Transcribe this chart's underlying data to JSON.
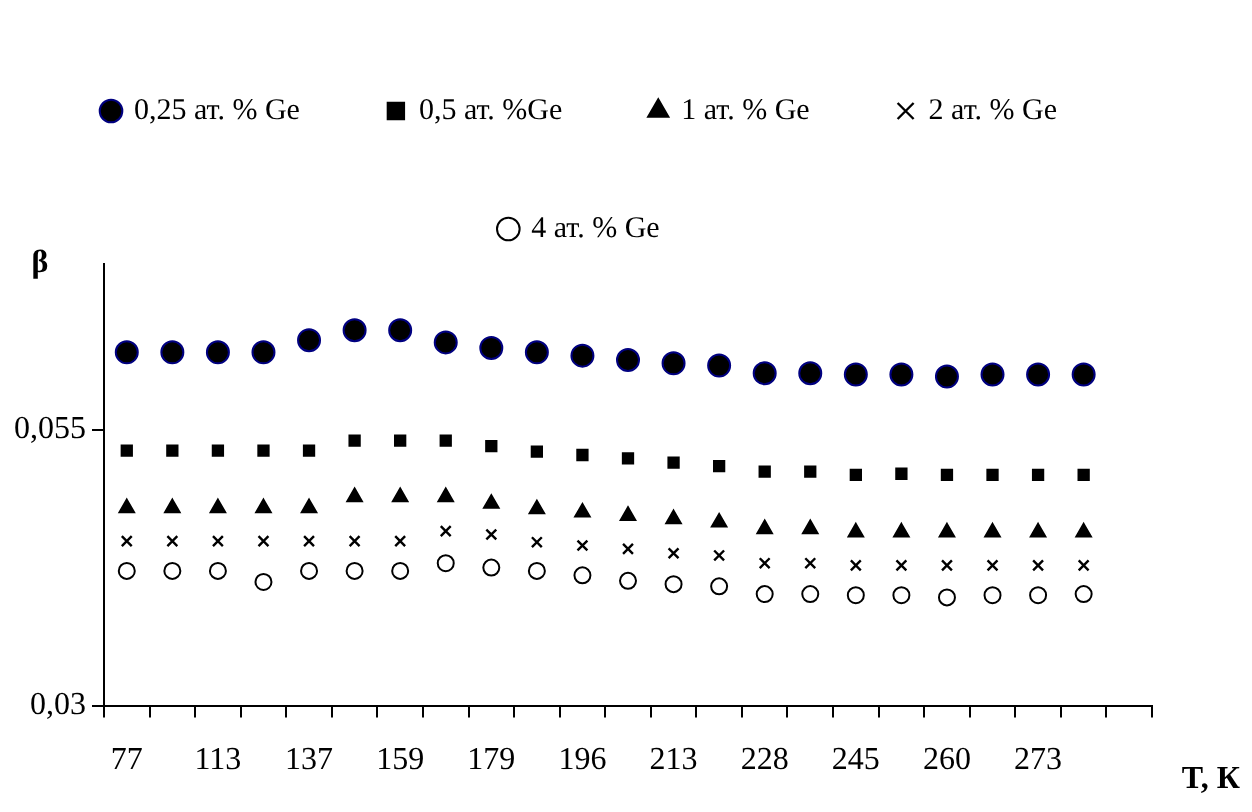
{
  "chart_data": {
    "type": "scatter",
    "xlabel": "T, К",
    "ylabel": "β",
    "categories": [
      "77",
      null,
      "113",
      null,
      "137",
      null,
      "159",
      null,
      "179",
      null,
      "196",
      null,
      "213",
      null,
      "228",
      null,
      "245",
      null,
      "260",
      null,
      "273",
      null,
      null
    ],
    "ylim": [
      0.03,
      0.07
    ],
    "yticks": [
      {
        "value": 0.03,
        "label": "0,03"
      },
      {
        "value": 0.055,
        "label": "0,055"
      }
    ],
    "grid": false,
    "legend": "top",
    "series": [
      {
        "name": "0,25 ат. % Ge",
        "color": "#000000",
        "marker": "circle",
        "values": [
          0.062,
          0.062,
          0.062,
          0.062,
          0.0631,
          0.064,
          0.064,
          0.0629,
          0.0624,
          0.062,
          0.0617,
          0.0613,
          0.061,
          0.0608,
          0.0601,
          0.0601,
          0.06,
          0.06,
          0.0598,
          0.06,
          0.06,
          0.06,
          null
        ]
      },
      {
        "name": "0,5 ат. %Ge",
        "color": "#000000",
        "marker": "square",
        "values": [
          0.0531,
          0.0531,
          0.0531,
          0.0531,
          0.0531,
          0.054,
          0.054,
          0.054,
          0.0535,
          0.053,
          0.0527,
          0.0524,
          0.052,
          0.0517,
          0.0512,
          0.0512,
          0.0509,
          0.051,
          0.0509,
          0.0509,
          0.0509,
          0.0509,
          null
        ]
      },
      {
        "name": "1 ат. % Ge",
        "color": "#000000",
        "marker": "triangle",
        "values": [
          0.0479,
          0.0479,
          0.0479,
          0.0479,
          0.0479,
          0.0489,
          0.0489,
          0.0489,
          0.0483,
          0.0478,
          0.0475,
          0.0472,
          0.0469,
          0.0466,
          0.046,
          0.046,
          0.0457,
          0.0457,
          0.0457,
          0.0457,
          0.0457,
          0.0457,
          null
        ]
      },
      {
        "name": "2 ат. % Ge",
        "color": "#000000",
        "marker": "cross",
        "values": [
          0.0449,
          0.0449,
          0.0449,
          0.0449,
          0.0449,
          0.0449,
          0.0449,
          0.0458,
          0.0455,
          0.0448,
          0.0445,
          0.0442,
          0.0438,
          0.0436,
          0.0429,
          0.0429,
          0.0427,
          0.0427,
          0.0427,
          0.0427,
          0.0427,
          0.0427,
          null
        ]
      },
      {
        "name": "4 ат. % Ge",
        "color": "#000000",
        "marker": "circle",
        "values": [
          0.0422,
          0.0422,
          0.0422,
          0.0412,
          0.0422,
          0.0422,
          0.0422,
          0.0429,
          0.0425,
          0.0422,
          0.0418,
          0.0413,
          0.041,
          0.0408,
          0.0401,
          0.0401,
          0.04,
          0.04,
          0.0398,
          0.04,
          0.04,
          0.0401,
          null
        ]
      }
    ]
  }
}
